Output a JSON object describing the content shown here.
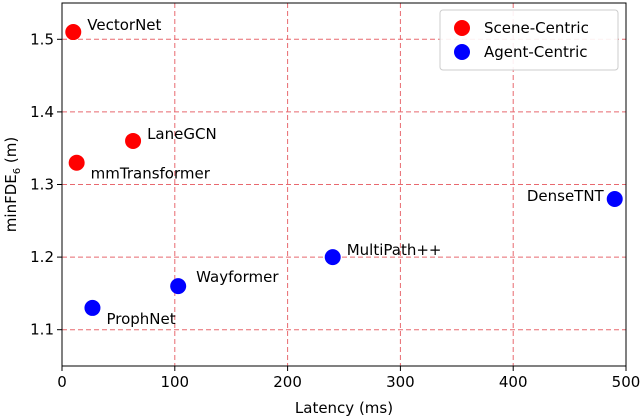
{
  "chart_data": {
    "type": "scatter",
    "xlabel": "Latency (ms)",
    "ylabel": {
      "base": "minFDE",
      "sub": "6",
      "suffix": " (m)"
    },
    "xlim": [
      0,
      500
    ],
    "ylim": [
      1.05,
      1.55
    ],
    "xticks": [
      "0",
      "100",
      "200",
      "300",
      "400",
      "500"
    ],
    "yticks": [
      "1.1",
      "1.2",
      "1.3",
      "1.4",
      "1.5"
    ],
    "grid": true,
    "grid_color": "#e8696f",
    "legend_position": "top-right",
    "series": [
      {
        "name": "Scene-Centric",
        "color": "#ff0000",
        "points": [
          {
            "label": "VectorNet",
            "x": 10,
            "y": 1.51,
            "anchor": "right"
          },
          {
            "label": "LaneGCN",
            "x": 63,
            "y": 1.36,
            "anchor": "right"
          },
          {
            "label": "mmTransformer",
            "x": 13,
            "y": 1.33,
            "anchor": "right-below"
          }
        ]
      },
      {
        "name": "Agent-Centric",
        "color": "#0000ff",
        "points": [
          {
            "label": "DenseTNT",
            "x": 490,
            "y": 1.28,
            "anchor": "left"
          },
          {
            "label": "MultiPath++",
            "x": 240,
            "y": 1.2,
            "anchor": "right"
          },
          {
            "label": "Wayformer",
            "x": 103,
            "y": 1.16,
            "anchor": "right-above"
          },
          {
            "label": "ProphNet",
            "x": 27,
            "y": 1.13,
            "anchor": "right-below"
          }
        ]
      }
    ]
  }
}
